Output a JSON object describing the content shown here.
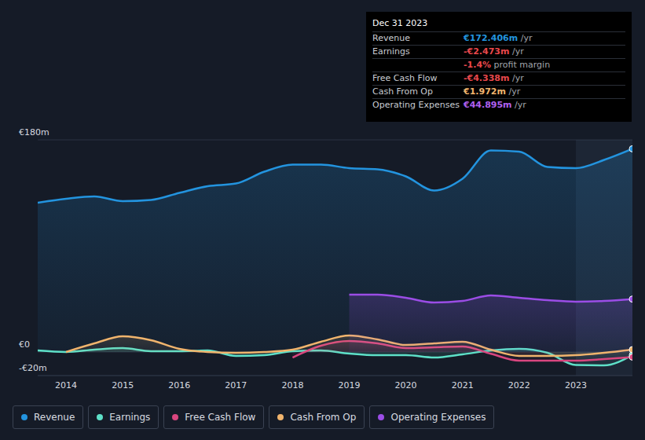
{
  "chart_data": {
    "type": "area",
    "x": [
      2013.5,
      2014,
      2014.5,
      2015,
      2015.5,
      2016,
      2016.5,
      2017,
      2017.5,
      2018,
      2018.5,
      2019,
      2019.5,
      2020,
      2020.5,
      2021,
      2021.5,
      2022,
      2022.5,
      2023,
      2023.5,
      2024
    ],
    "xlim": [
      2013.5,
      2024
    ],
    "xticks": [
      2014,
      2015,
      2016,
      2017,
      2018,
      2019,
      2020,
      2021,
      2022,
      2023
    ],
    "ylim": [
      -20,
      180
    ],
    "yticks": [
      {
        "value": -20,
        "label": "-€20m"
      },
      {
        "value": 0,
        "label": "€0"
      },
      {
        "value": 180,
        "label": "€180m"
      }
    ],
    "grid": true,
    "legend": "bottom",
    "series": [
      {
        "name": "Revenue",
        "color": "#2394df",
        "values": [
          126.7,
          130,
          132,
          128,
          129,
          135,
          140.7,
          143,
          153,
          159,
          159,
          156,
          155,
          149,
          137,
          147,
          171,
          170,
          157,
          156,
          163,
          172.4
        ]
      },
      {
        "name": "Earnings",
        "color": "#5ee0c8",
        "values": [
          1.3,
          0,
          2,
          3.3,
          0.7,
          0.7,
          1.3,
          -3.3,
          -2.7,
          0.7,
          1.3,
          -1.3,
          -2.7,
          -2.7,
          -4.7,
          -2,
          1.3,
          2.7,
          -0.7,
          -11,
          -11.3,
          -2.5
        ]
      },
      {
        "name": "Free Cash Flow",
        "color": "#d9467f",
        "values": [
          null,
          null,
          null,
          null,
          null,
          null,
          null,
          null,
          null,
          -4.7,
          5.3,
          9.3,
          7.3,
          3.3,
          4,
          4.7,
          -1.5,
          -7.3,
          -7.3,
          -7.3,
          -6,
          -4.3
        ]
      },
      {
        "name": "Cash From Op",
        "color": "#f0b46d",
        "values": [
          null,
          0,
          7.3,
          13.3,
          10,
          2.7,
          0,
          -0.7,
          0,
          2,
          8.7,
          14,
          10.7,
          6,
          7.3,
          8.7,
          2,
          -3.3,
          -3.3,
          -2.7,
          -0.7,
          2
        ]
      },
      {
        "name": "Operating Expenses",
        "color": "#9b4de6",
        "values": [
          null,
          null,
          null,
          null,
          null,
          null,
          null,
          null,
          null,
          null,
          null,
          48.7,
          48.7,
          46,
          42,
          43.3,
          48,
          46,
          44,
          42.7,
          43.3,
          44.9
        ]
      }
    ]
  },
  "tooltip": {
    "date": "Dec 31 2023",
    "rows": [
      {
        "label": "Revenue",
        "value": "€172.406m",
        "unit": "/yr",
        "color": "#2394df"
      },
      {
        "label": "Earnings",
        "value": "-€2.473m",
        "unit": "/yr",
        "color": "#e8484c"
      },
      {
        "value": "-1.4%",
        "unit": "profit margin",
        "color": "#e8484c"
      },
      {
        "label": "Free Cash Flow",
        "value": "-€4.338m",
        "unit": "/yr",
        "color": "#e8484c"
      },
      {
        "label": "Cash From Op",
        "value": "€1.972m",
        "unit": "/yr",
        "color": "#f0b46d"
      },
      {
        "label": "Operating Expenses",
        "value": "€44.895m",
        "unit": "/yr",
        "color": "#b060f0"
      }
    ]
  }
}
